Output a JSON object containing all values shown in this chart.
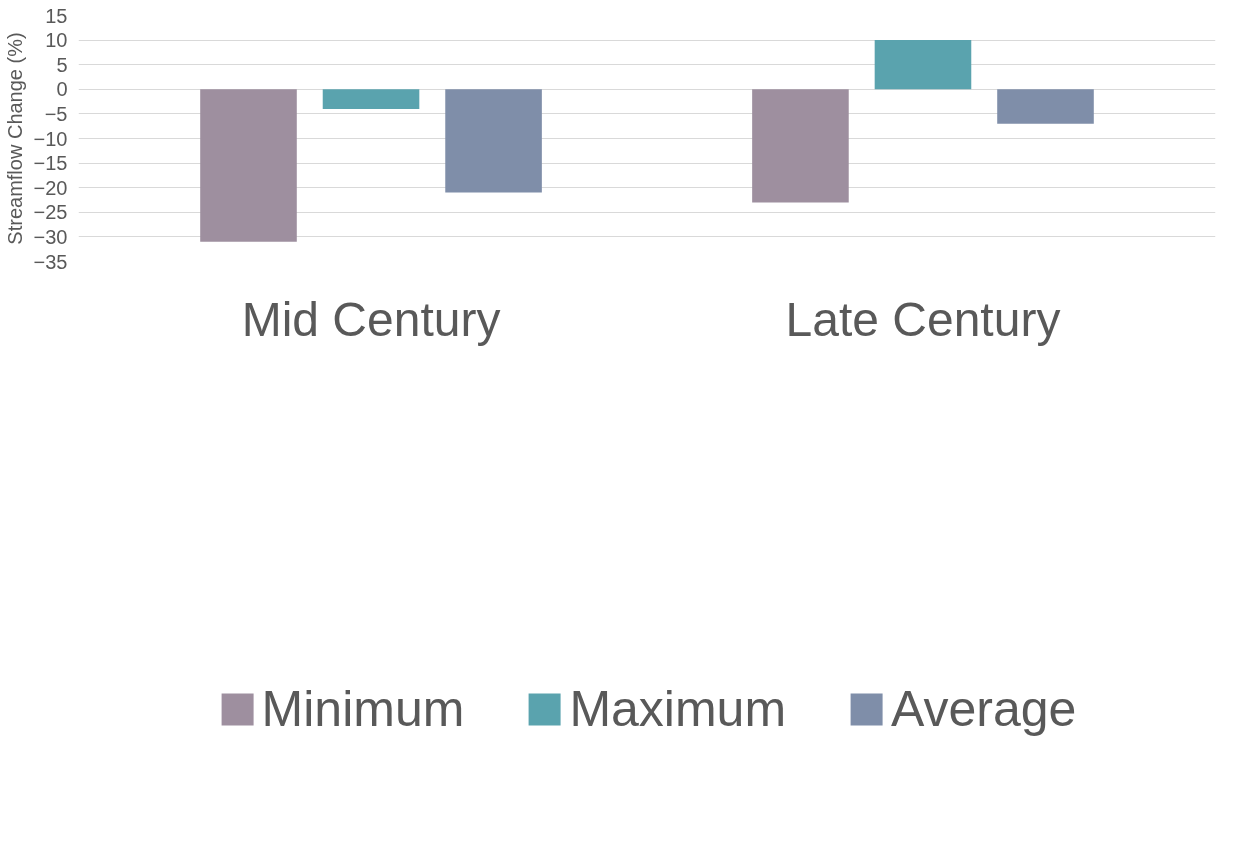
{
  "chart_data": {
    "type": "bar",
    "categories": [
      "Mid Century",
      "Late Century"
    ],
    "ylabel": "Streamflow Change (%)",
    "series": [
      {
        "name": "Minimum",
        "color": "#9e8f9f",
        "values": [
          -31,
          -23
        ]
      },
      {
        "name": "Maximum",
        "color": "#5aa3ae",
        "values": [
          -4,
          10
        ]
      },
      {
        "name": "Average",
        "color": "#7f8ea9",
        "values": [
          -21,
          -7
        ]
      }
    ],
    "ylim": [
      -35,
      15
    ],
    "yticks": [
      -35,
      -30,
      -25,
      -20,
      -15,
      -10,
      -5,
      0,
      5,
      10,
      15
    ],
    "grid": "y",
    "legend": "bottom"
  }
}
